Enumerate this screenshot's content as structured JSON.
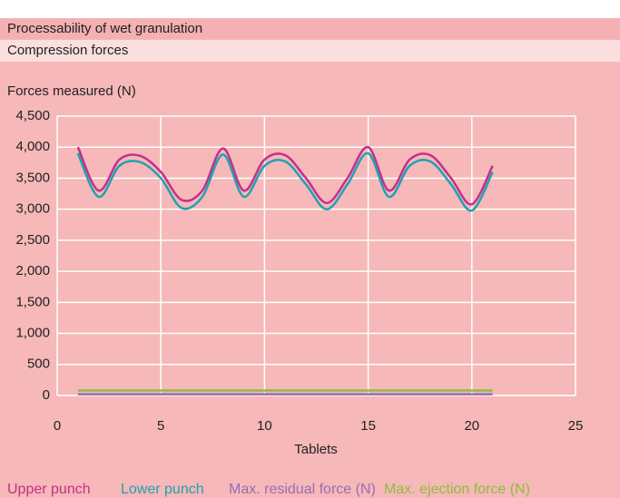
{
  "chart_data": {
    "type": "line",
    "title": "Processability of wet granulation",
    "subtitle": "Compression forces",
    "y_label": "Forces measured (N)",
    "x_label": "Tablets",
    "xlim": [
      0,
      25
    ],
    "xticks": [
      0,
      5,
      10,
      15,
      20,
      25
    ],
    "ylim": [
      0,
      4500
    ],
    "yticks": [
      0,
      500,
      {
        "value": 1000,
        "label": "1,000"
      },
      {
        "value": 1500,
        "label": "1,500"
      },
      {
        "value": 2000,
        "label": "2,000"
      },
      {
        "value": 2500,
        "label": "2,500"
      },
      {
        "value": 3000,
        "label": "3,000"
      },
      {
        "value": 3500,
        "label": "3,500"
      },
      {
        "value": 4000,
        "label": "4,000"
      },
      {
        "value": 4500,
        "label": "4,500"
      }
    ],
    "grid": true,
    "x": [
      1,
      2,
      3,
      4,
      5,
      6,
      7,
      8,
      9,
      10,
      11,
      12,
      13,
      14,
      15,
      16,
      17,
      18,
      19,
      20,
      21
    ],
    "series": [
      {
        "name": "Upper punch",
        "color": "#c4308c",
        "values": [
          4000,
          3300,
          3800,
          3860,
          3600,
          3150,
          3300,
          3980,
          3300,
          3800,
          3870,
          3500,
          3100,
          3500,
          4000,
          3300,
          3800,
          3870,
          3500,
          3080,
          3700
        ]
      },
      {
        "name": "Lower punch",
        "color": "#1fa2b2",
        "values": [
          3900,
          3200,
          3700,
          3760,
          3500,
          3020,
          3200,
          3880,
          3200,
          3700,
          3770,
          3400,
          3000,
          3400,
          3900,
          3200,
          3700,
          3770,
          3400,
          2980,
          3600
        ]
      },
      {
        "name": "Max. residual force (N)",
        "color": "#9a6cb8",
        "values": [
          20,
          20,
          20,
          20,
          20,
          20,
          20,
          20,
          20,
          20,
          20,
          20,
          20,
          20,
          20,
          20,
          20,
          20,
          20,
          20,
          20
        ]
      },
      {
        "name": "Max. ejection force (N)",
        "color": "#8cbf3c",
        "values": [
          80,
          80,
          80,
          80,
          80,
          80,
          80,
          80,
          80,
          80,
          80,
          80,
          80,
          80,
          80,
          80,
          80,
          80,
          80,
          80,
          80
        ]
      }
    ]
  }
}
